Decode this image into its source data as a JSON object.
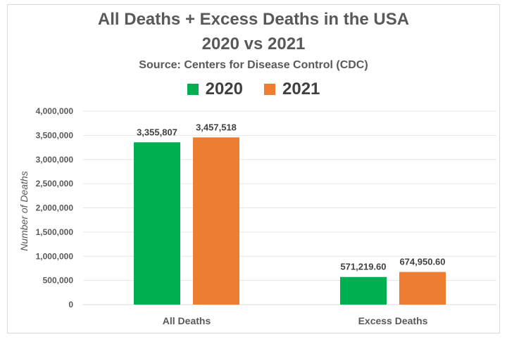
{
  "chart_data": {
    "type": "bar",
    "title": "All Deaths + Excess Deaths in the USA",
    "subtitle": "2020 vs 2021",
    "source": "Source: Centers for Disease Control (CDC)",
    "xlabel": "",
    "ylabel": "Number of Deaths",
    "ylim": [
      0,
      4000000
    ],
    "yticks": [
      "0",
      "500,000",
      "1,000,000",
      "1,500,000",
      "2,000,000",
      "2,500,000",
      "3,000,000",
      "3,500,000",
      "4,000,000"
    ],
    "ytick_values": [
      0,
      500000,
      1000000,
      1500000,
      2000000,
      2500000,
      3000000,
      3500000,
      4000000
    ],
    "categories": [
      "All Deaths",
      "Excess Deaths"
    ],
    "series": [
      {
        "name": "2020",
        "color": "#00b050",
        "values": [
          3355807,
          571219.6
        ],
        "labels": [
          "3,355,807",
          "571,219.60"
        ]
      },
      {
        "name": "2021",
        "color": "#ed7d31",
        "values": [
          3457518,
          674950.6
        ],
        "labels": [
          "3,457,518",
          "674,950.60"
        ]
      }
    ],
    "grid": true,
    "legend": "top-center"
  }
}
